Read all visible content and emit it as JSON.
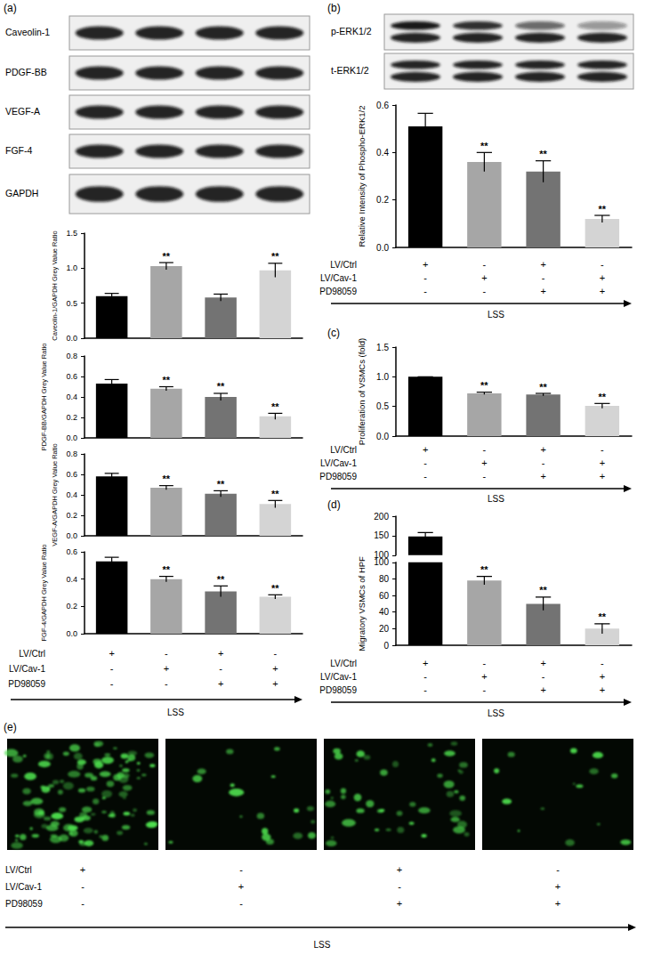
{
  "panel_labels": [
    "(a)",
    "(b)",
    "(c)",
    "(d)",
    "(e)"
  ],
  "blots": [
    {
      "bands": [
        "Caveolin-1",
        "PDGF-BB",
        "VEGF-A",
        "FGF-4",
        "GAPDH"
      ]
    },
    {
      "bands": [
        "p-ERK1/2",
        "t-ERK1/2"
      ]
    }
  ],
  "treatments": {
    "rows": [
      {
        "label": "LV/Ctrl",
        "marks": [
          "+",
          "-",
          "+",
          "-"
        ]
      },
      {
        "label": "LV/Cav-1",
        "marks": [
          "-",
          "+",
          "-",
          "+"
        ]
      },
      {
        "label": "PD98059",
        "marks": [
          "-",
          "-",
          "+",
          "+"
        ]
      }
    ],
    "condition": "LSS"
  },
  "chart_data": [
    {
      "type": "bar",
      "ylabel": "Caveolin-1/GAPDH Grey Value Ratio",
      "categories": [
        null,
        null,
        null,
        null
      ],
      "values": [
        0.6,
        1.03,
        0.58,
        0.97
      ],
      "errors": [
        0.04,
        0.05,
        0.05,
        0.1
      ],
      "annotations": [
        null,
        "**",
        null,
        "**"
      ],
      "colors": [
        "#000000",
        "#a6a6a6",
        "#737373",
        "#d4d4d4"
      ],
      "ylim": [
        0,
        1.5
      ],
      "yticks": [
        {
          "value": 0,
          "label": "0.0"
        },
        0.5,
        {
          "value": 1,
          "label": "1.0"
        },
        1.5
      ],
      "grid": false,
      "tick_labels": "y"
    },
    {
      "type": "bar",
      "ylabel": "PDGF-BB/GAPDH Grey Value Ratio",
      "categories": [
        null,
        null,
        null,
        null
      ],
      "values": [
        0.53,
        0.48,
        0.4,
        0.21
      ],
      "errors": [
        0.04,
        0.02,
        0.035,
        0.03
      ],
      "annotations": [
        null,
        "**",
        "**",
        "**"
      ],
      "colors": [
        "#000000",
        "#a6a6a6",
        "#737373",
        "#d4d4d4"
      ],
      "ylim": [
        0,
        0.8
      ],
      "yticks": [
        {
          "value": 0,
          "label": "0.0"
        },
        0.2,
        0.4,
        0.6,
        0.8
      ],
      "grid": false,
      "tick_labels": "y"
    },
    {
      "type": "bar",
      "ylabel": "VEGF-A/GAPDH Grey Value Ratio",
      "categories": [
        null,
        null,
        null,
        null
      ],
      "values": [
        0.58,
        0.47,
        0.41,
        0.31
      ],
      "errors": [
        0.03,
        0.02,
        0.03,
        0.035
      ],
      "annotations": [
        null,
        "**",
        "**",
        "**"
      ],
      "colors": [
        "#000000",
        "#a6a6a6",
        "#737373",
        "#d4d4d4"
      ],
      "ylim": [
        0,
        0.8
      ],
      "yticks": [
        {
          "value": 0,
          "label": "0.0"
        },
        0.2,
        0.4,
        0.6,
        0.8
      ],
      "grid": false,
      "tick_labels": "y"
    },
    {
      "type": "bar",
      "ylabel": "FGF-4/GAPDH Grey Value Ratio",
      "categories": [
        null,
        null,
        null,
        null
      ],
      "values": [
        0.53,
        0.4,
        0.31,
        0.27
      ],
      "errors": [
        0.03,
        0.02,
        0.04,
        0.015
      ],
      "annotations": [
        null,
        "**",
        "**",
        "**"
      ],
      "colors": [
        "#000000",
        "#a6a6a6",
        "#737373",
        "#d4d4d4"
      ],
      "ylim": [
        0,
        0.6
      ],
      "yticks": [
        {
          "value": 0,
          "label": "0.0"
        },
        0.2,
        0.4,
        0.6
      ],
      "grid": false,
      "tick_labels": "y"
    },
    {
      "type": "bar",
      "ylabel": "Relative Intensity of Phospho-ERK1/2",
      "categories": [
        null,
        null,
        null,
        null
      ],
      "values": [
        0.51,
        0.36,
        0.32,
        0.12
      ],
      "errors": [
        0.055,
        0.04,
        0.045,
        0.015
      ],
      "annotations": [
        null,
        "**",
        "**",
        "**"
      ],
      "colors": [
        "#000000",
        "#a6a6a6",
        "#737373",
        "#d4d4d4"
      ],
      "ylim": [
        0,
        0.6
      ],
      "yticks": [
        {
          "value": 0,
          "label": "0.0"
        },
        0.2,
        0.4,
        0.6
      ],
      "grid": false,
      "tick_labels": "y"
    },
    {
      "type": "bar",
      "ylabel": "Proliferation of VSMCs (fold)",
      "categories": [
        null,
        null,
        null,
        null
      ],
      "values": [
        1.0,
        0.72,
        0.7,
        0.51
      ],
      "errors": [
        0,
        0.02,
        0.02,
        0.04
      ],
      "annotations": [
        null,
        "**",
        "**",
        "**"
      ],
      "colors": [
        "#000000",
        "#a6a6a6",
        "#737373",
        "#d4d4d4"
      ],
      "ylim": [
        0,
        1.5
      ],
      "yticks": [
        {
          "value": 0,
          "label": "0.0"
        },
        0.5,
        {
          "value": 1,
          "label": "1.0"
        },
        1.5
      ],
      "grid": false,
      "tick_labels": "y"
    },
    {
      "type": "bar",
      "ylabel": "Migratory VSMCs of HPF",
      "categories": [
        null,
        null,
        null,
        null
      ],
      "values": [
        148,
        78,
        50,
        20
      ],
      "errors": [
        10,
        5,
        8,
        6
      ],
      "annotations": [
        null,
        "**",
        "**",
        "**"
      ],
      "colors": [
        "#000000",
        "#a6a6a6",
        "#737373",
        "#d4d4d4"
      ],
      "segments": [
        {
          "ylim": [
            0,
            100
          ],
          "yticks": [
            0,
            20,
            40,
            60,
            80,
            100
          ]
        },
        {
          "ylim": [
            100,
            200
          ],
          "yticks": [
            100,
            150,
            200
          ]
        }
      ],
      "grid": false,
      "tick_labels": "y"
    }
  ]
}
